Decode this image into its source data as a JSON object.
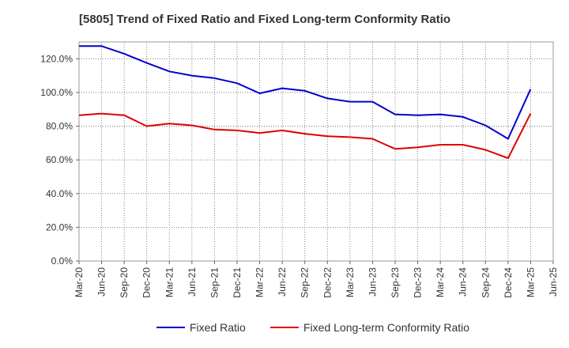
{
  "chart_data": {
    "type": "line",
    "title": "[5805]  Trend of Fixed Ratio and Fixed Long-term Conformity Ratio",
    "xlabel": "",
    "ylabel": "",
    "categories": [
      "Mar-20",
      "Jun-20",
      "Sep-20",
      "Dec-20",
      "Mar-21",
      "Jun-21",
      "Sep-21",
      "Dec-21",
      "Mar-22",
      "Jun-22",
      "Sep-22",
      "Dec-22",
      "Mar-23",
      "Jun-23",
      "Sep-23",
      "Dec-23",
      "Mar-24",
      "Jun-24",
      "Sep-24",
      "Dec-24",
      "Mar-25",
      "Jun-25"
    ],
    "ylim": [
      0,
      130
    ],
    "yticks": [
      0,
      20,
      40,
      60,
      80,
      100,
      120
    ],
    "ytick_labels": [
      "0.0%",
      "20.0%",
      "40.0%",
      "60.0%",
      "80.0%",
      "100.0%",
      "120.0%"
    ],
    "grid": true,
    "legend_position": "bottom",
    "series": [
      {
        "name": "Fixed Ratio",
        "color": "#0000cc",
        "values": [
          127.5,
          127.5,
          123.0,
          117.5,
          112.5,
          110.0,
          108.5,
          105.5,
          99.5,
          102.5,
          101.0,
          96.5,
          94.5,
          94.5,
          87.0,
          86.5,
          87.0,
          85.5,
          80.5,
          72.5,
          102.0,
          null
        ]
      },
      {
        "name": "Fixed Long-term Conformity Ratio",
        "color": "#e00000",
        "values": [
          86.5,
          87.5,
          86.5,
          80.0,
          81.5,
          80.5,
          78.0,
          77.5,
          76.0,
          77.5,
          75.5,
          74.0,
          73.5,
          72.5,
          66.5,
          67.5,
          69.0,
          69.0,
          66.0,
          61.0,
          87.5,
          null
        ]
      }
    ]
  }
}
